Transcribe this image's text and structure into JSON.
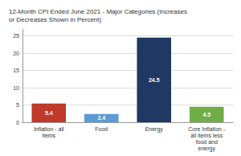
{
  "chart_data": {
    "type": "bar",
    "title": "12-Month CPI Ended June 2021 - Major Categories (Increases\nor Decreases Shown in Percent)",
    "categories": [
      "Inflation - all\nitems",
      "Food",
      "Energy",
      "Core Inflation -\nall items less\nfood and\nenergy"
    ],
    "values": [
      5.4,
      2.4,
      24.5,
      4.5
    ],
    "colors": [
      "#c0392b",
      "#5b9bd5",
      "#1f3864",
      "#70ad47"
    ],
    "ylim": [
      0,
      27
    ],
    "yticks": [
      0,
      5,
      10,
      15,
      20,
      25
    ],
    "grid": true,
    "data_labels": true
  }
}
